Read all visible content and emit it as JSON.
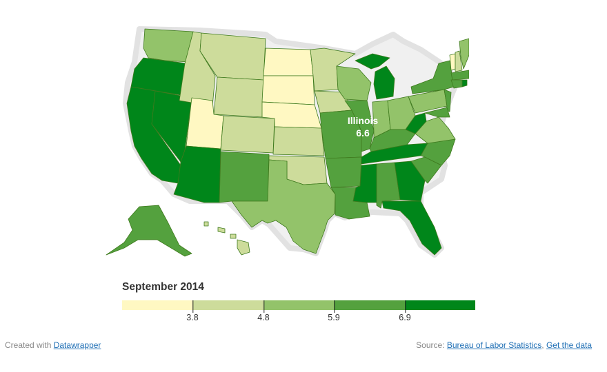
{
  "map": {
    "label_state": "Illinois",
    "label_value": "6.6"
  },
  "legend": {
    "title": "September 2014",
    "ticks": [
      "3.8",
      "4.8",
      "5.9",
      "6.9"
    ],
    "colors": [
      "#fff8c2",
      "#cddc9b",
      "#93c36a",
      "#54a13e",
      "#00861a"
    ]
  },
  "footer": {
    "created_prefix": "Created with",
    "created_link": "Datawrapper",
    "source_prefix": "Source:",
    "source_link": "Bureau of Labor Statistics",
    "separator": ",",
    "data_link": "Get the data"
  }
}
